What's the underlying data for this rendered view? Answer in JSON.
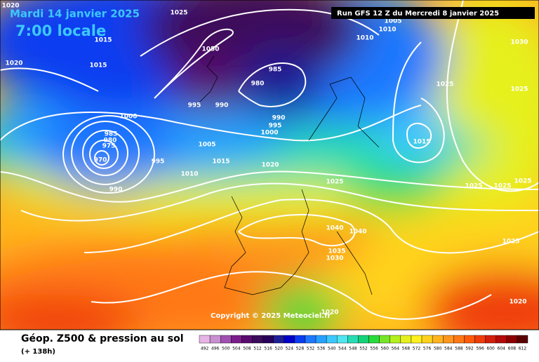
{
  "header": {
    "date": "Mardi 14 janvier 2025",
    "time": "7:00 locale",
    "run": "Run GFS 12 Z du Mercredi 8 janvier 2025"
  },
  "isobar_labels": [
    1020,
    1025,
    1015,
    1015,
    1020,
    1010,
    1010,
    1005,
    1030,
    985,
    980,
    995,
    990,
    990,
    995,
    1000,
    1000,
    985,
    980,
    975,
    970,
    995,
    1005,
    1015,
    1010,
    1020,
    990,
    1015,
    1025,
    1025,
    1025,
    1025,
    1025,
    1025,
    1040,
    1040,
    1035,
    1030,
    1025,
    1020,
    1020,
    1050
  ],
  "copyright": "Copyright © 2025 Meteociel.fr",
  "footer": {
    "title": "Géop. Z500 & pression au sol",
    "lead": "(+ 138h)"
  },
  "color_scale": [
    {
      "value": 492,
      "color": "#e6b4e6"
    },
    {
      "value": 496,
      "color": "#c890d0"
    },
    {
      "value": 500,
      "color": "#a050b0"
    },
    {
      "value": 504,
      "color": "#7a1c8c"
    },
    {
      "value": 508,
      "color": "#5a0a6e"
    },
    {
      "value": 512,
      "color": "#3c0a5a"
    },
    {
      "value": 516,
      "color": "#28005a"
    },
    {
      "value": 520,
      "color": "#1e1e96"
    },
    {
      "value": 524,
      "color": "#0000c8"
    },
    {
      "value": 528,
      "color": "#0a3cf0"
    },
    {
      "value": 532,
      "color": "#1e78ff"
    },
    {
      "value": 536,
      "color": "#28a0ff"
    },
    {
      "value": 540,
      "color": "#3cc8ff"
    },
    {
      "value": 544,
      "color": "#50e6f0"
    },
    {
      "value": 548,
      "color": "#28dcb4"
    },
    {
      "value": 552,
      "color": "#14d278"
    },
    {
      "value": 556,
      "color": "#28dc3c"
    },
    {
      "value": 560,
      "color": "#78e628"
    },
    {
      "value": 564,
      "color": "#b4f01e"
    },
    {
      "value": 568,
      "color": "#e6f01e"
    },
    {
      "value": 572,
      "color": "#fff01e"
    },
    {
      "value": 576,
      "color": "#ffd21e"
    },
    {
      "value": 580,
      "color": "#ffb41e"
    },
    {
      "value": 584,
      "color": "#ff961e"
    },
    {
      "value": 588,
      "color": "#ff7814"
    },
    {
      "value": 592,
      "color": "#ff5a0a"
    },
    {
      "value": 596,
      "color": "#f03c0a"
    },
    {
      "value": 600,
      "color": "#d21e0a"
    },
    {
      "value": 604,
      "color": "#b40a0a"
    },
    {
      "value": 608,
      "color": "#8c0000"
    },
    {
      "value": 612,
      "color": "#5a0000"
    }
  ]
}
